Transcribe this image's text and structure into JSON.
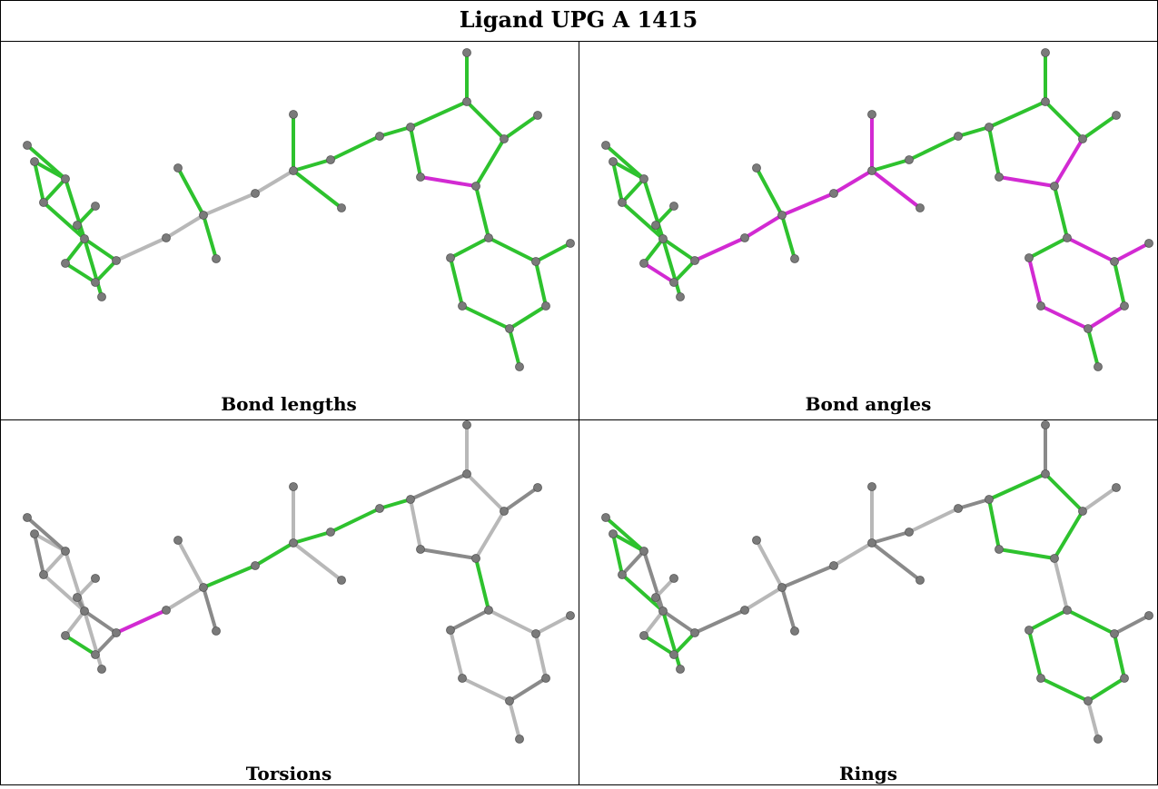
{
  "header": {
    "title": "Ligand UPG A 1415"
  },
  "panels": [
    {
      "label": "Bond lengths"
    },
    {
      "label": "Bond angles"
    },
    {
      "label": "Torsions"
    },
    {
      "label": "Rings"
    }
  ]
}
